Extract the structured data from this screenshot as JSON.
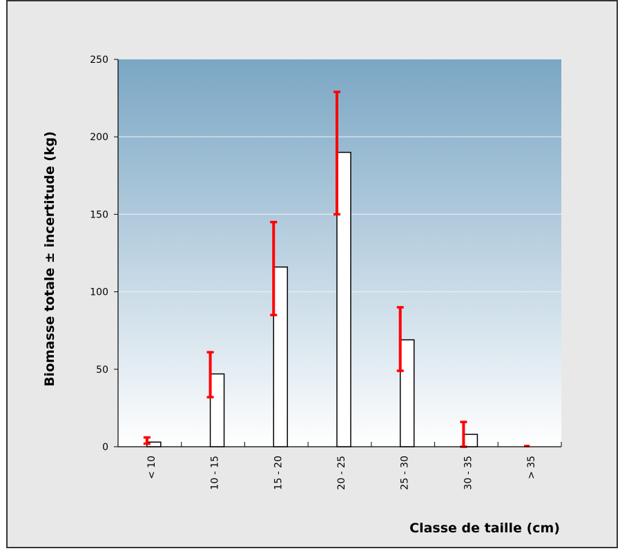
{
  "chart_data": {
    "type": "bar",
    "xlabel": "Classe de taille (cm)",
    "ylabel": "Biomasse totale ± incertitude (kg)",
    "ylim": [
      0,
      250
    ],
    "yticks": [
      0,
      50,
      100,
      150,
      200,
      250
    ],
    "grid": true,
    "categories": [
      "< 10",
      "10 - 15",
      "15 - 20",
      "20 - 25",
      "25 - 30",
      "30 - 35",
      "> 35"
    ],
    "values": [
      3,
      47,
      116,
      190,
      69,
      8,
      0
    ],
    "error_low": [
      2,
      32,
      85,
      150,
      49,
      0,
      0
    ],
    "error_high": [
      6,
      61,
      145,
      229,
      90,
      16,
      0
    ],
    "colors": {
      "bar_fill": "#ffffff",
      "bar_stroke": "#000000",
      "error_bar": "#ff0000",
      "plot_top": "#7aa6c4",
      "plot_bottom": "#ffffff",
      "grid": "#e6eef4",
      "background": "#e8e8e8"
    }
  }
}
